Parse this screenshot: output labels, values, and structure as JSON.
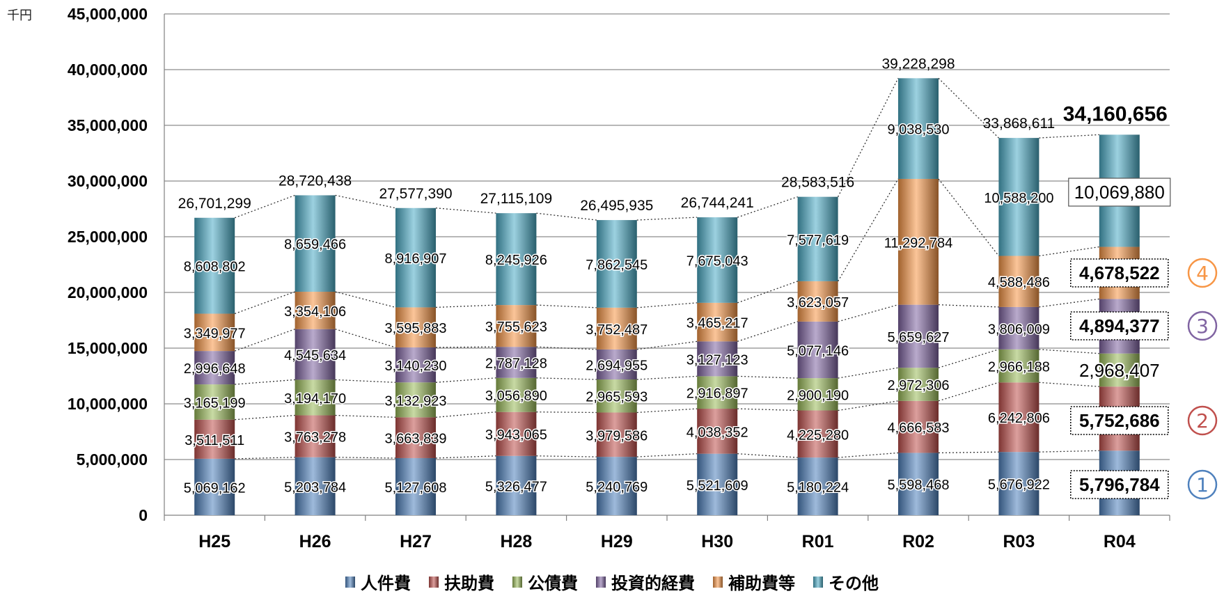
{
  "chart_data": {
    "type": "bar",
    "stacked": true,
    "unit_label": "千円",
    "categories": [
      "H25",
      "H26",
      "H27",
      "H28",
      "H29",
      "H30",
      "R01",
      "R02",
      "R03",
      "R04"
    ],
    "ylim": [
      0,
      45000000
    ],
    "yticks": [
      0,
      5000000,
      10000000,
      15000000,
      20000000,
      25000000,
      30000000,
      35000000,
      40000000,
      45000000
    ],
    "ytick_labels": [
      "0",
      "5,000,000",
      "10,000,000",
      "15,000,000",
      "20,000,000",
      "25,000,000",
      "30,000,000",
      "35,000,000",
      "40,000,000",
      "45,000,000"
    ],
    "grid": true,
    "legend_position": "bottom",
    "series": [
      {
        "name": "人件費",
        "color": "#4f81bd",
        "values": [
          5069162,
          5203784,
          5127608,
          5326477,
          5240769,
          5521609,
          5180224,
          5598468,
          5676922,
          5796784
        ],
        "labels": [
          "5,069,162",
          "5,203,784",
          "5,127,608",
          "5,326,477",
          "5,240,769",
          "5,521,609",
          "5,180,224",
          "5,598,468",
          "5,676,922",
          "5,796,784"
        ]
      },
      {
        "name": "扶助費",
        "color": "#c0504d",
        "values": [
          3511511,
          3763278,
          3663839,
          3943065,
          3979586,
          4038352,
          4225280,
          4666583,
          6242806,
          5752686
        ],
        "labels": [
          "3,511,511",
          "3,763,278",
          "3,663,839",
          "3,943,065",
          "3,979,586",
          "4,038,352",
          "4,225,280",
          "4,666,583",
          "6,242,806",
          "5,752,686"
        ]
      },
      {
        "name": "公債費",
        "color": "#9bbb59",
        "values": [
          3165199,
          3194170,
          3132923,
          3056890,
          2965593,
          2916897,
          2900190,
          2972306,
          2966188,
          2968407
        ],
        "labels": [
          "3,165,199",
          "3,194,170",
          "3,132,923",
          "3,056,890",
          "2,965,593",
          "2,916,897",
          "2,900,190",
          "2,972,306",
          "2,966,188",
          "2,968,407"
        ]
      },
      {
        "name": "投資的経費",
        "color": "#8064a2",
        "values": [
          2996648,
          4545634,
          3140230,
          2787128,
          2694955,
          3127123,
          5077146,
          5659627,
          3806009,
          4894377
        ],
        "labels": [
          "2,996,648",
          "4,545,634",
          "3,140,230",
          "2,787,128",
          "2,694,955",
          "3,127,123",
          "5,077,146",
          "5,659,627",
          "3,806,009",
          "4,894,377"
        ]
      },
      {
        "name": "補助費等",
        "color": "#f79646",
        "values": [
          3349977,
          3354106,
          3595883,
          3755623,
          3752487,
          3465217,
          3623057,
          11292784,
          4588486,
          4678522
        ],
        "labels": [
          "3,349,977",
          "3,354,106",
          "3,595,883",
          "3,755,623",
          "3,752,487",
          "3,465,217",
          "3,623,057",
          "11,292,784",
          "4,588,486",
          "4,678,522"
        ]
      },
      {
        "name": "その他",
        "color": "#4bacc6",
        "values": [
          8608802,
          8659466,
          8916907,
          8245926,
          7862545,
          7675043,
          7577619,
          9038530,
          10588200,
          10069880
        ],
        "labels": [
          "8,608,802",
          "8,659,466",
          "8,916,907",
          "8,245,926",
          "7,862,545",
          "7,675,043",
          "7,577,619",
          "9,038,530",
          "10,588,200",
          "10,069,880"
        ]
      }
    ],
    "totals": [
      26701299,
      28720438,
      27577390,
      27115109,
      26495935,
      26744241,
      28583516,
      39228298,
      33868611,
      34160656
    ],
    "total_labels": [
      "26,701,299",
      "28,720,438",
      "27,577,390",
      "27,115,109",
      "26,495,935",
      "26,744,241",
      "28,583,516",
      "39,228,298",
      "33,868,611",
      "34,160,656"
    ],
    "rank_markers": [
      {
        "symbol": "①",
        "series": "人件費",
        "color": "#4f81bd"
      },
      {
        "symbol": "②",
        "series": "扶助費",
        "color": "#c0504d"
      },
      {
        "symbol": "③",
        "series": "投資的経費",
        "color": "#8064a2"
      },
      {
        "symbol": "④",
        "series": "補助費等",
        "color": "#f79646"
      }
    ]
  }
}
